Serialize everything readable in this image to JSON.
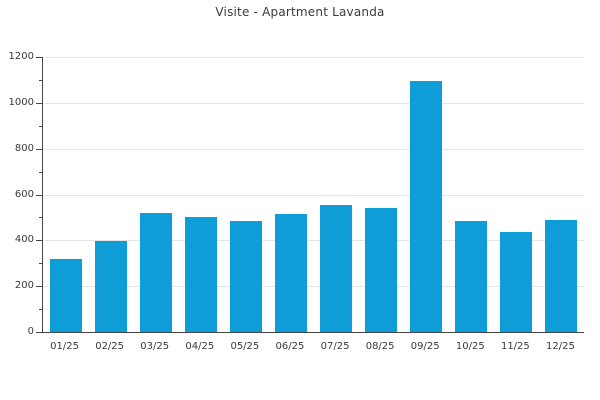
{
  "chart_data": {
    "type": "bar",
    "title": "Visite - Apartment Lavanda",
    "categories": [
      "01/25",
      "02/25",
      "03/25",
      "04/25",
      "05/25",
      "06/25",
      "07/25",
      "08/25",
      "09/25",
      "10/25",
      "11/25",
      "12/25"
    ],
    "values": [
      320,
      395,
      520,
      500,
      485,
      515,
      555,
      540,
      1095,
      485,
      435,
      490
    ],
    "xlabel": "",
    "ylabel": "",
    "ylim": [
      0,
      1200
    ],
    "yticks": [
      0,
      200,
      400,
      600,
      800,
      1000,
      1200
    ],
    "minor_tick_interval": 100,
    "grid": "horizontal-major-only",
    "legend_position": "none",
    "colors": {
      "bar": "#0f9dd7",
      "grid": "#e5e5e5",
      "axis": "#474747",
      "text": "#3a3a3a",
      "background": "#ffffff"
    }
  }
}
